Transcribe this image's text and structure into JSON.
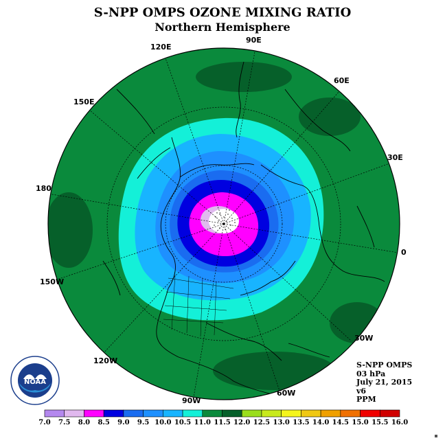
{
  "title": "S-NPP OMPS OZONE MIXING RATIO",
  "subtitle": "Northern Hemisphere",
  "longitude_labels": [
    "90E",
    "60E",
    "30E",
    "0",
    "30W",
    "60W",
    "90W",
    "120W",
    "150W",
    "180",
    "150E",
    "120E"
  ],
  "info": {
    "instrument": "S-NPP OMPS",
    "level": "03 hPa",
    "date": "July 21, 2015",
    "version": "v6",
    "units": "PPM"
  },
  "logo_text": "NOAA",
  "colorbar": {
    "ticks": [
      "7.0",
      "7.5",
      "8.0",
      "8.5",
      "9.0",
      "9.5",
      "10.0",
      "10.5",
      "11.0",
      "11.5",
      "12.0",
      "12.5",
      "13.0",
      "13.5",
      "14.0",
      "14.5",
      "15.0",
      "15.5",
      "16.0"
    ],
    "colors": [
      "#b488ee",
      "#e0b8ee",
      "#ff00ff",
      "#0000e0",
      "#1a6cf0",
      "#1e90ff",
      "#18b4ff",
      "#14f0d8",
      "#0a8a3c",
      "#06602a",
      "#9ade1c",
      "#c8ea1c",
      "#f5f51c",
      "#f0c814",
      "#f0a000",
      "#f07000",
      "#f00000",
      "#d00000",
      "#8c5a3c"
    ]
  },
  "field_colors": {
    "land": "#0a8a3c",
    "dark_green": "#06602a",
    "cyan": "#14f0d8",
    "sky": "#18b4ff",
    "light_blue": "#1e90ff",
    "blue": "#1a6cf0",
    "dark_blue": "#0000e0",
    "magenta": "#ff00ff",
    "light_pink": "#e0b8ee",
    "white": "#ffffff"
  }
}
